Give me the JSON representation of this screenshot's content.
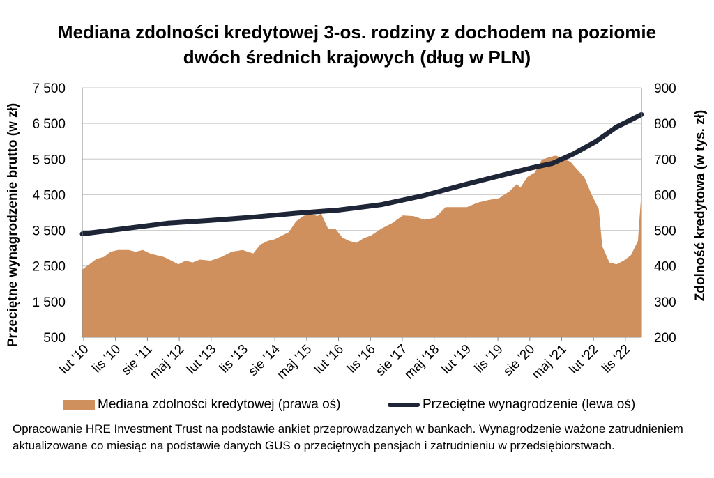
{
  "chart_data": {
    "type": "area+line",
    "title_line1": "Mediana zdolności kredytowej 3-os. rodziny z dochodem na poziomie",
    "title_line2": "dwóch średnich krajowych (dług w PLN)",
    "left_axis": {
      "label": "Przeciętne wynagrodzenie brutto (w zł)",
      "ticks": [
        "7 500",
        "6 500",
        "5 500",
        "4 500",
        "3 500",
        "2 500",
        "1 500",
        "500"
      ],
      "range": [
        500,
        7500
      ]
    },
    "right_axis": {
      "label": "Zdolność kredytowa (w tys. zł)",
      "ticks": [
        "900",
        "800",
        "700",
        "600",
        "500",
        "400",
        "300",
        "200"
      ],
      "range": [
        200,
        900
      ]
    },
    "x_tick_labels": [
      "lut '10",
      "lis '10",
      "sie '11",
      "maj '12",
      "lut '13",
      "lis '13",
      "sie '14",
      "maj '15",
      "lut '16",
      "lis '16",
      "sie '17",
      "maj '18",
      "lut '19",
      "lis '19",
      "sie '20",
      "maj '21",
      "lut '22",
      "lis '22"
    ],
    "x_range": [
      "2010-02",
      "2023-03"
    ],
    "grid": "horizontal",
    "legend_position": "bottom",
    "series": [
      {
        "name": "Mediana zdolności kredytowej (prawa oś)",
        "axis": "right",
        "kind": "area",
        "color": "#d0905e",
        "points": [
          [
            "2010-02",
            390
          ],
          [
            "2010-04",
            405
          ],
          [
            "2010-06",
            420
          ],
          [
            "2010-08",
            425
          ],
          [
            "2010-10",
            440
          ],
          [
            "2010-12",
            445
          ],
          [
            "2011-03",
            445
          ],
          [
            "2011-05",
            440
          ],
          [
            "2011-07",
            445
          ],
          [
            "2011-09",
            435
          ],
          [
            "2011-11",
            430
          ],
          [
            "2012-01",
            425
          ],
          [
            "2012-03",
            415
          ],
          [
            "2012-05",
            405
          ],
          [
            "2012-07",
            415
          ],
          [
            "2012-09",
            410
          ],
          [
            "2012-11",
            418
          ],
          [
            "2013-02",
            415
          ],
          [
            "2013-05",
            425
          ],
          [
            "2013-08",
            440
          ],
          [
            "2013-11",
            445
          ],
          [
            "2014-02",
            435
          ],
          [
            "2014-04",
            460
          ],
          [
            "2014-06",
            470
          ],
          [
            "2014-08",
            475
          ],
          [
            "2014-10",
            485
          ],
          [
            "2014-12",
            495
          ],
          [
            "2015-02",
            525
          ],
          [
            "2015-04",
            540
          ],
          [
            "2015-06",
            547
          ],
          [
            "2015-08",
            540
          ],
          [
            "2015-09",
            548
          ],
          [
            "2015-11",
            505
          ],
          [
            "2016-01",
            505
          ],
          [
            "2016-03",
            480
          ],
          [
            "2016-05",
            470
          ],
          [
            "2016-07",
            465
          ],
          [
            "2016-09",
            478
          ],
          [
            "2016-11",
            485
          ],
          [
            "2017-02",
            505
          ],
          [
            "2017-05",
            520
          ],
          [
            "2017-08",
            542
          ],
          [
            "2017-11",
            540
          ],
          [
            "2018-02",
            530
          ],
          [
            "2018-05",
            535
          ],
          [
            "2018-08",
            565
          ],
          [
            "2018-11",
            565
          ],
          [
            "2019-02",
            565
          ],
          [
            "2019-05",
            578
          ],
          [
            "2019-08",
            585
          ],
          [
            "2019-11",
            590
          ],
          [
            "2020-02",
            610
          ],
          [
            "2020-04",
            630
          ],
          [
            "2020-05",
            620
          ],
          [
            "2020-07",
            650
          ],
          [
            "2020-09",
            662
          ],
          [
            "2020-11",
            698
          ],
          [
            "2021-01",
            705
          ],
          [
            "2021-03",
            710
          ],
          [
            "2021-05",
            700
          ],
          [
            "2021-07",
            693
          ],
          [
            "2021-09",
            670
          ],
          [
            "2021-11",
            648
          ],
          [
            "2022-01",
            600
          ],
          [
            "2022-03",
            560
          ],
          [
            "2022-04",
            455
          ],
          [
            "2022-06",
            410
          ],
          [
            "2022-08",
            405
          ],
          [
            "2022-10",
            415
          ],
          [
            "2022-12",
            430
          ],
          [
            "2023-02",
            470
          ],
          [
            "2023-03",
            610
          ]
        ]
      },
      {
        "name": "Przeciętne wynagrodzenie (lewa oś)",
        "axis": "left",
        "kind": "line",
        "color": "#1d2536",
        "points": [
          [
            "2010-02",
            3400
          ],
          [
            "2011-02",
            3550
          ],
          [
            "2012-02",
            3700
          ],
          [
            "2013-02",
            3780
          ],
          [
            "2014-02",
            3870
          ],
          [
            "2015-02",
            3980
          ],
          [
            "2016-02",
            4070
          ],
          [
            "2017-02",
            4220
          ],
          [
            "2018-02",
            4480
          ],
          [
            "2019-02",
            4800
          ],
          [
            "2020-02",
            5100
          ],
          [
            "2020-08",
            5250
          ],
          [
            "2021-02",
            5380
          ],
          [
            "2021-08",
            5650
          ],
          [
            "2022-02",
            5980
          ],
          [
            "2022-08",
            6400
          ],
          [
            "2023-03",
            6750
          ]
        ]
      }
    ]
  },
  "note": "Opracowanie HRE Investment Trust na podstawie ankiet przeprowadzanych w bankach. Wynagrodzenie ważone zatrudnieniem aktualizowane co miesiąc na podstawie danych GUS o przeciętnych pensjach i zatrudnieniu w przedsiębiorstwach."
}
